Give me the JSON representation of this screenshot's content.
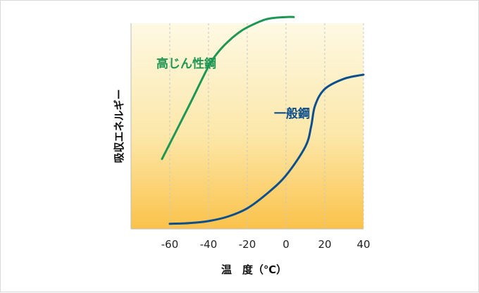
{
  "chart_data": {
    "type": "line",
    "title": "",
    "xlabel": "温　度（℃）",
    "ylabel": "吸収エネルギー",
    "x_ticks": [
      -60,
      -40,
      -20,
      0,
      20,
      40
    ],
    "xlim": [
      -80,
      40
    ],
    "ylim": [
      0,
      100
    ],
    "y_ticks": [],
    "grid": "vertical dashed",
    "background": "yellow-gradient",
    "series": [
      {
        "name": "高じん性鋼",
        "color": "#1e9654",
        "x": [
          -64,
          -50,
          -40,
          -35,
          -30,
          -25,
          -20,
          -10,
          0,
          4
        ],
        "y": [
          34,
          60,
          79,
          86,
          91,
          95,
          98,
          102,
          103,
          103
        ]
      },
      {
        "name": "一般鋼",
        "color": "#0d4f8c",
        "x": [
          -60,
          -50,
          -40,
          -30,
          -20,
          -10,
          0,
          10,
          13,
          15,
          20,
          30,
          40
        ],
        "y": [
          2.5,
          2.8,
          3.8,
          6,
          10,
          17,
          26,
          40,
          50,
          60,
          68,
          73,
          75
        ]
      }
    ]
  }
}
